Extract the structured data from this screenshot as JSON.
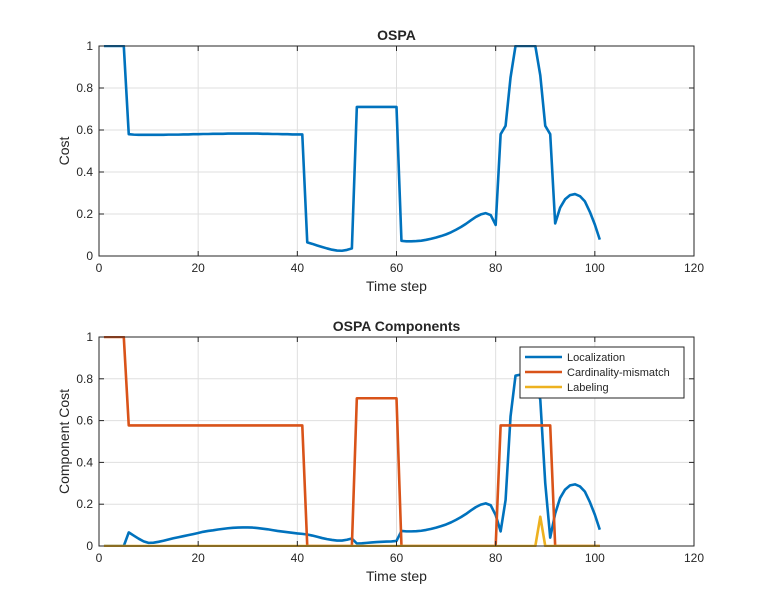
{
  "chart_data": [
    {
      "type": "line",
      "title": "OSPA",
      "xlabel": "Time step",
      "ylabel": "Cost",
      "xlim": [
        0,
        120
      ],
      "ylim": [
        0,
        1
      ],
      "xticks": [
        0,
        20,
        40,
        60,
        80,
        100,
        120
      ],
      "yticks": [
        0,
        0.2,
        0.4,
        0.6,
        0.8,
        1
      ],
      "yticklabels": [
        "0",
        "0.2",
        "0.4",
        "0.6",
        "0.8",
        "1"
      ],
      "grid": true,
      "series": [
        {
          "name": "OSPA",
          "color": "#0072BD",
          "x": [
            1,
            2,
            3,
            4,
            5,
            6,
            7,
            8,
            9,
            10,
            11,
            12,
            13,
            14,
            15,
            16,
            17,
            18,
            19,
            20,
            21,
            22,
            23,
            24,
            25,
            26,
            27,
            28,
            29,
            30,
            31,
            32,
            33,
            34,
            35,
            36,
            37,
            38,
            39,
            40,
            41,
            42,
            43,
            44,
            45,
            46,
            47,
            48,
            49,
            50,
            51,
            52,
            53,
            54,
            55,
            56,
            57,
            58,
            59,
            60,
            61,
            62,
            63,
            64,
            65,
            66,
            67,
            68,
            69,
            70,
            71,
            72,
            73,
            74,
            75,
            76,
            77,
            78,
            79,
            80,
            81,
            82,
            83,
            84,
            85,
            86,
            87,
            88,
            89,
            90,
            91,
            92,
            93,
            94,
            95,
            96,
            97,
            98,
            99,
            100,
            101
          ],
          "y": [
            1,
            1,
            1,
            1,
            1,
            0.58,
            0.578,
            0.577,
            0.577,
            0.577,
            0.577,
            0.577,
            0.577,
            0.578,
            0.578,
            0.578,
            0.579,
            0.579,
            0.58,
            0.58,
            0.581,
            0.581,
            0.582,
            0.582,
            0.582,
            0.583,
            0.583,
            0.583,
            0.583,
            0.583,
            0.583,
            0.583,
            0.582,
            0.582,
            0.581,
            0.581,
            0.58,
            0.58,
            0.579,
            0.579,
            0.579,
            0.065,
            0.058,
            0.05,
            0.043,
            0.036,
            0.03,
            0.026,
            0.025,
            0.029,
            0.036,
            0.71,
            0.71,
            0.71,
            0.71,
            0.71,
            0.71,
            0.71,
            0.71,
            0.71,
            0.072,
            0.07,
            0.07,
            0.071,
            0.073,
            0.077,
            0.082,
            0.088,
            0.095,
            0.103,
            0.113,
            0.125,
            0.138,
            0.153,
            0.17,
            0.186,
            0.198,
            0.204,
            0.195,
            0.148,
            0.58,
            0.62,
            0.85,
            1,
            1,
            1,
            1,
            1,
            0.86,
            0.62,
            0.58,
            0.155,
            0.23,
            0.27,
            0.29,
            0.295,
            0.285,
            0.26,
            0.21,
            0.15,
            0.078
          ]
        }
      ]
    },
    {
      "type": "line",
      "title": "OSPA Components",
      "xlabel": "Time step",
      "ylabel": "Component Cost",
      "xlim": [
        0,
        120
      ],
      "ylim": [
        0,
        1
      ],
      "xticks": [
        0,
        20,
        40,
        60,
        80,
        100,
        120
      ],
      "yticks": [
        0,
        0.2,
        0.4,
        0.6,
        0.8,
        1
      ],
      "yticklabels": [
        "0",
        "0.2",
        "0.4",
        "0.6",
        "0.8",
        "1"
      ],
      "grid": true,
      "legend": "top-right",
      "series": [
        {
          "name": "Localization",
          "color": "#0072BD",
          "x": [
            1,
            2,
            3,
            4,
            5,
            6,
            7,
            8,
            9,
            10,
            11,
            12,
            13,
            14,
            15,
            16,
            17,
            18,
            19,
            20,
            21,
            22,
            23,
            24,
            25,
            26,
            27,
            28,
            29,
            30,
            31,
            32,
            33,
            34,
            35,
            36,
            37,
            38,
            39,
            40,
            41,
            42,
            43,
            44,
            45,
            46,
            47,
            48,
            49,
            50,
            51,
            52,
            53,
            54,
            55,
            56,
            57,
            58,
            59,
            60,
            61,
            62,
            63,
            64,
            65,
            66,
            67,
            68,
            69,
            70,
            71,
            72,
            73,
            74,
            75,
            76,
            77,
            78,
            79,
            80,
            81,
            82,
            83,
            84,
            85,
            86,
            87,
            88,
            89,
            90,
            91,
            92,
            93,
            94,
            95,
            96,
            97,
            98,
            99,
            100,
            101
          ],
          "y": [
            0,
            0,
            0,
            0,
            0,
            0.065,
            0.05,
            0.035,
            0.022,
            0.015,
            0.016,
            0.02,
            0.025,
            0.031,
            0.037,
            0.042,
            0.047,
            0.052,
            0.057,
            0.062,
            0.068,
            0.072,
            0.075,
            0.079,
            0.082,
            0.085,
            0.087,
            0.088,
            0.089,
            0.089,
            0.088,
            0.086,
            0.083,
            0.08,
            0.076,
            0.072,
            0.069,
            0.066,
            0.063,
            0.06,
            0.058,
            0.055,
            0.05,
            0.044,
            0.038,
            0.033,
            0.029,
            0.026,
            0.026,
            0.03,
            0.036,
            0.012,
            0.013,
            0.015,
            0.017,
            0.019,
            0.02,
            0.021,
            0.022,
            0.024,
            0.072,
            0.07,
            0.07,
            0.071,
            0.073,
            0.077,
            0.082,
            0.088,
            0.095,
            0.103,
            0.113,
            0.125,
            0.138,
            0.153,
            0.17,
            0.186,
            0.198,
            0.204,
            0.195,
            0.148,
            0.07,
            0.22,
            0.62,
            0.815,
            0.82,
            0.815,
            0.8,
            0.78,
            0.7,
            0.3,
            0.04,
            0.155,
            0.23,
            0.27,
            0.29,
            0.295,
            0.285,
            0.26,
            0.21,
            0.15,
            0.078
          ]
        },
        {
          "name": "Cardinality-mismatch",
          "color": "#D95319",
          "x": [
            1,
            2,
            3,
            4,
            5,
            6,
            41,
            42,
            51,
            52,
            60,
            61,
            80,
            81,
            90,
            91,
            92,
            101
          ],
          "y": [
            1,
            1,
            1,
            1,
            1,
            0.577,
            0.577,
            0,
            0,
            0.707,
            0.707,
            0,
            0,
            0.577,
            0.577,
            0.577,
            0,
            0
          ]
        },
        {
          "name": "Labeling",
          "color": "#EDB120",
          "x": [
            1,
            88,
            89,
            90,
            101
          ],
          "y": [
            0,
            0,
            0.14,
            0,
            0
          ]
        }
      ]
    }
  ]
}
